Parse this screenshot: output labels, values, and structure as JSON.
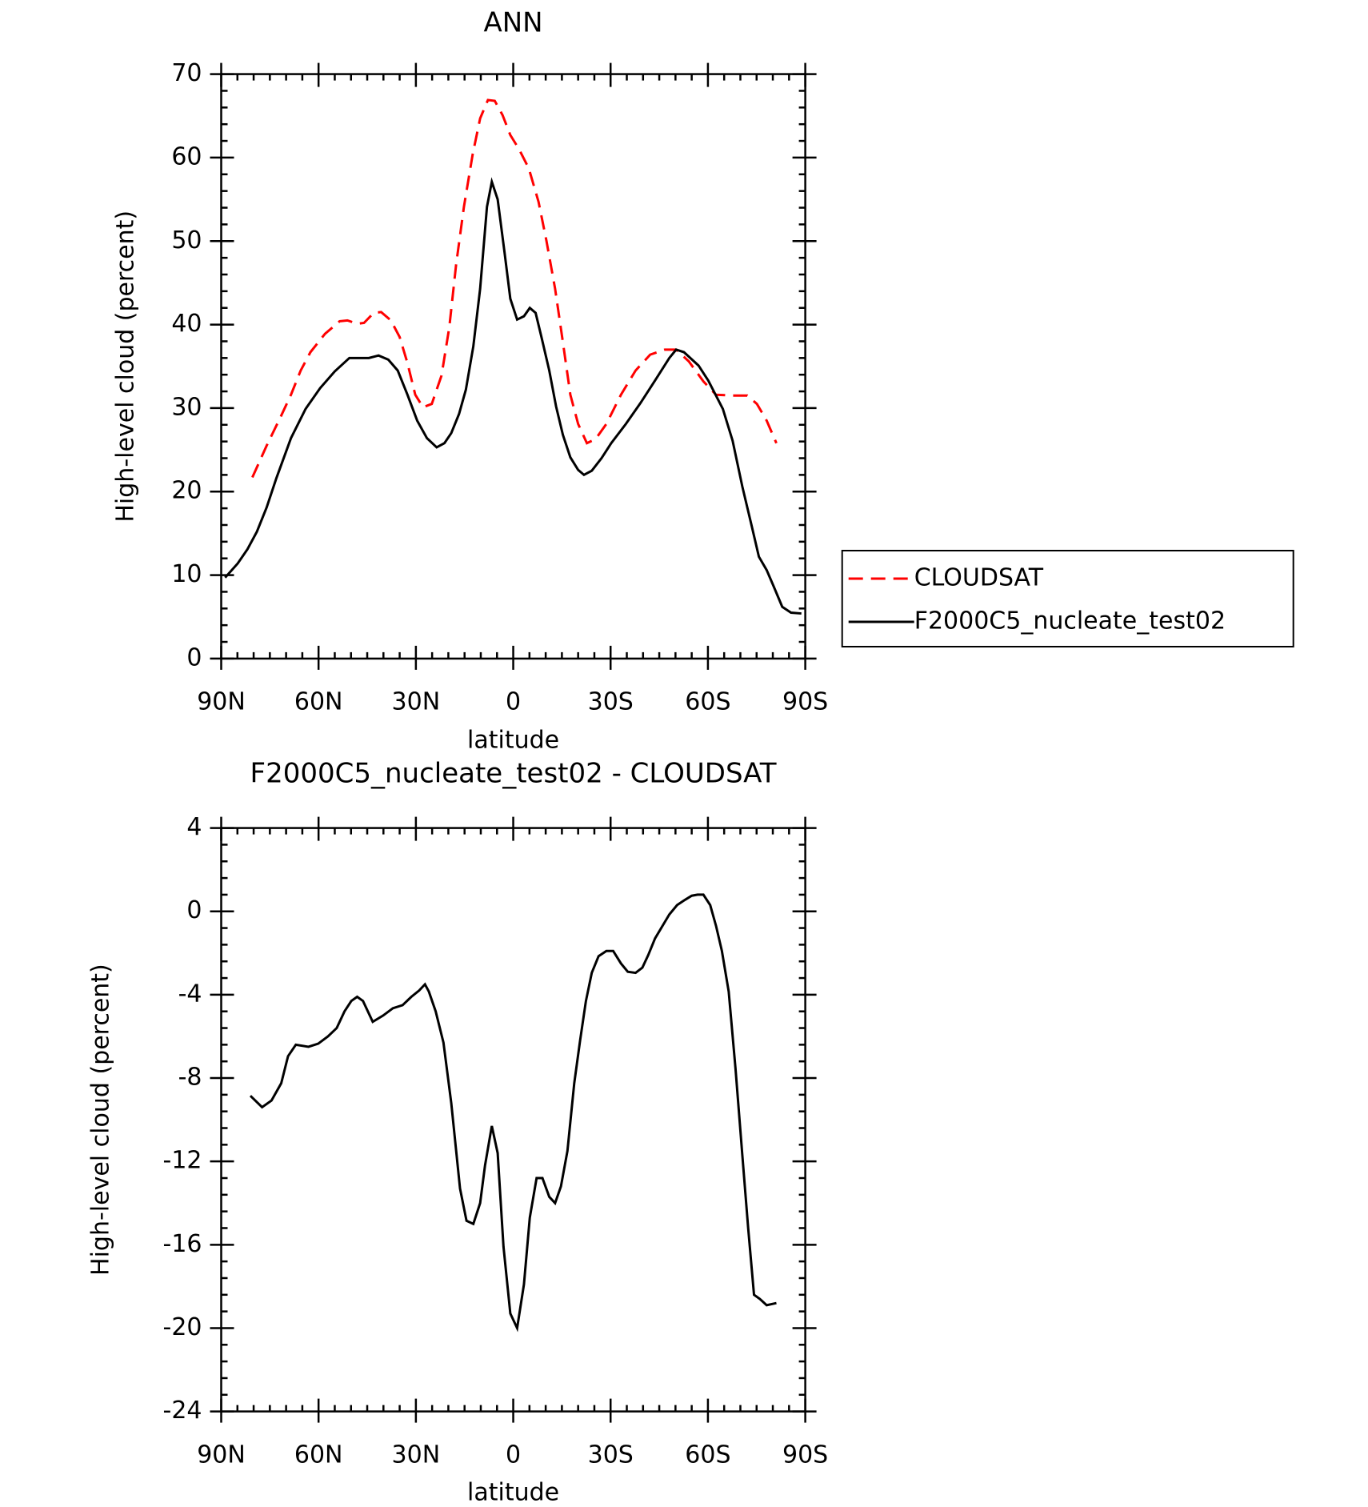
{
  "chart_data": [
    {
      "type": "line",
      "title": "ANN",
      "x_label": "latitude",
      "y_label": "High-level cloud (percent)",
      "xlim": [
        90,
        -90
      ],
      "ylim": [
        0,
        70
      ],
      "xticks": [
        {
          "value": 90,
          "label": "90N"
        },
        {
          "value": 60,
          "label": "60N"
        },
        {
          "value": 30,
          "label": "30N"
        },
        0,
        {
          "value": -30,
          "label": "30S"
        },
        {
          "value": -60,
          "label": "60S"
        },
        {
          "value": -90,
          "label": "90S"
        }
      ],
      "yticks": [
        0,
        10,
        20,
        30,
        40,
        50,
        60,
        70
      ],
      "legend": "right",
      "series": [
        {
          "name": "CLOUDSAT",
          "color": "#ff0000",
          "linestyle": "dashed",
          "x": [
            80.4,
            76,
            71.5,
            68.5,
            65.5,
            62.5,
            58,
            53.5,
            51.1,
            48.1,
            46,
            43,
            40.7,
            37.7,
            35,
            32.6,
            30.2,
            27.8,
            25.1,
            22.1,
            19.7,
            17.6,
            15.2,
            12.5,
            10.2,
            7.8,
            5.7,
            3.3,
            0.9,
            -1.8,
            -4.8,
            -7.8,
            -10.2,
            -12.9,
            -15.3,
            -17.6,
            -20,
            -22.7,
            -25.4,
            -28.7,
            -33.2,
            -37.7,
            -42.2,
            -46.7,
            -50.2,
            -54.1,
            -58.6,
            -62.5,
            -67.6,
            -72.1,
            -75.1,
            -78.1,
            -81.1
          ],
          "values": [
            21.7,
            25.5,
            29.1,
            31.6,
            34.5,
            36.7,
            38.9,
            40.4,
            40.5,
            40.1,
            40.2,
            41.4,
            41.5,
            40.5,
            38.5,
            35.4,
            31.6,
            30.1,
            30.5,
            33.9,
            39.7,
            47.2,
            54.1,
            60.4,
            64.7,
            66.9,
            66.8,
            65.1,
            62.7,
            61,
            58.7,
            54.7,
            50.1,
            44.3,
            37.9,
            31.6,
            28.1,
            25.8,
            26.3,
            28.1,
            31.6,
            34.5,
            36.4,
            37,
            37,
            35.6,
            33.2,
            31.6,
            31.5,
            31.5,
            30.5,
            28.5,
            25.8
          ]
        },
        {
          "name": "F2000C5_nucleate_test02",
          "color": "#000000",
          "linestyle": "solid",
          "x": [
            88.8,
            84.9,
            81.9,
            79,
            76,
            73,
            68.5,
            64,
            59.5,
            55,
            50.5,
            44.5,
            41.5,
            38.5,
            35.6,
            32.6,
            29.6,
            26.6,
            23.6,
            21.2,
            19.1,
            16.7,
            14.6,
            12.3,
            10.2,
            8.1,
            6.6,
            4.8,
            2.7,
            0.9,
            -1.2,
            -3.3,
            -5.1,
            -6.9,
            -8.7,
            -11.1,
            -13.2,
            -15.3,
            -17.6,
            -20,
            -21.8,
            -24.2,
            -27.2,
            -30.2,
            -34.7,
            -39.2,
            -43.7,
            -48.1,
            -50.2,
            -52.6,
            -57.1,
            -60.1,
            -64.6,
            -67.6,
            -70.6,
            -73.6,
            -75.7,
            -78.1,
            -80.2,
            -82.9,
            -85.6,
            -88.8
          ],
          "values": [
            9.7,
            11.4,
            13.1,
            15.2,
            18.1,
            21.6,
            26.4,
            29.9,
            32.4,
            34.4,
            36,
            36,
            36.3,
            35.8,
            34.5,
            31.6,
            28.5,
            26.4,
            25.3,
            25.8,
            27,
            29.3,
            32.2,
            37.4,
            44.3,
            54.1,
            57.1,
            55,
            48.7,
            43.1,
            40.6,
            41,
            42,
            41.4,
            38.5,
            34.5,
            30.2,
            26.8,
            24.1,
            22.6,
            22,
            22.5,
            24,
            25.8,
            28.1,
            30.6,
            33.3,
            36,
            37,
            36.7,
            35.1,
            33.3,
            29.9,
            26.1,
            20.6,
            15.7,
            12.2,
            10.6,
            8.7,
            6.2,
            5.5,
            5.4
          ]
        }
      ]
    },
    {
      "type": "line",
      "title": "F2000C5_nucleate_test02 - CLOUDSAT",
      "x_label": "latitude",
      "y_label": "High-level cloud (percent)",
      "xlim": [
        90,
        -90
      ],
      "ylim": [
        -24,
        4
      ],
      "xticks": [
        {
          "value": 90,
          "label": "90N"
        },
        {
          "value": 60,
          "label": "60N"
        },
        {
          "value": 30,
          "label": "30N"
        },
        0,
        {
          "value": -30,
          "label": "30S"
        },
        {
          "value": -60,
          "label": "60S"
        },
        {
          "value": -90,
          "label": "90S"
        }
      ],
      "yticks": [
        -24,
        -20,
        -16,
        -12,
        -8,
        -4,
        0,
        4
      ],
      "series": [
        {
          "color": "#000000",
          "linestyle": "solid",
          "x": [
            81,
            77.4,
            74.5,
            71.5,
            69.4,
            67,
            63.1,
            60.1,
            57.1,
            54.4,
            52,
            49.9,
            48.1,
            46.3,
            43.3,
            40.1,
            37.1,
            34.1,
            31.4,
            29,
            27.2,
            26,
            23.9,
            21.5,
            19.1,
            16.4,
            14.4,
            12.3,
            10.2,
            8.7,
            6.6,
            4.8,
            3,
            0.9,
            -1.2,
            -3.3,
            -5.1,
            -7.2,
            -9,
            -11.1,
            -12.9,
            -14.7,
            -16.7,
            -18.8,
            -20.6,
            -22.4,
            -24.2,
            -26.3,
            -28.7,
            -30.8,
            -33.2,
            -35.3,
            -37.7,
            -39.8,
            -41.6,
            -43.7,
            -45.8,
            -48.1,
            -50.5,
            -52.9,
            -55,
            -56.8,
            -58.6,
            -60.7,
            -62.5,
            -64.3,
            -66.4,
            -68.5,
            -70.6,
            -72.4,
            -74.2,
            -76,
            -78.1,
            -81.1
          ],
          "values": [
            -8.85,
            -9.4,
            -9.08,
            -8.25,
            -6.95,
            -6.4,
            -6.5,
            -6.35,
            -6,
            -5.6,
            -4.8,
            -4.3,
            -4.1,
            -4.3,
            -5.3,
            -5,
            -4.65,
            -4.5,
            -4.1,
            -3.8,
            -3.5,
            -3.85,
            -4.8,
            -6.3,
            -9.2,
            -13.3,
            -14.85,
            -15,
            -14,
            -12.2,
            -10.3,
            -11.6,
            -16.1,
            -19.3,
            -20,
            -17.9,
            -14.7,
            -12.8,
            -12.8,
            -13.7,
            -14,
            -13.2,
            -11.5,
            -8.25,
            -6.2,
            -4.3,
            -2.95,
            -2.15,
            -1.9,
            -1.9,
            -2.5,
            -2.9,
            -2.95,
            -2.7,
            -2.1,
            -1.3,
            -0.75,
            -0.15,
            0.3,
            0.55,
            0.75,
            0.8,
            0.8,
            0.3,
            -0.7,
            -1.9,
            -3.85,
            -7.55,
            -11.7,
            -15.2,
            -18.4,
            -18.6,
            -18.9,
            -18.8
          ]
        }
      ]
    }
  ]
}
